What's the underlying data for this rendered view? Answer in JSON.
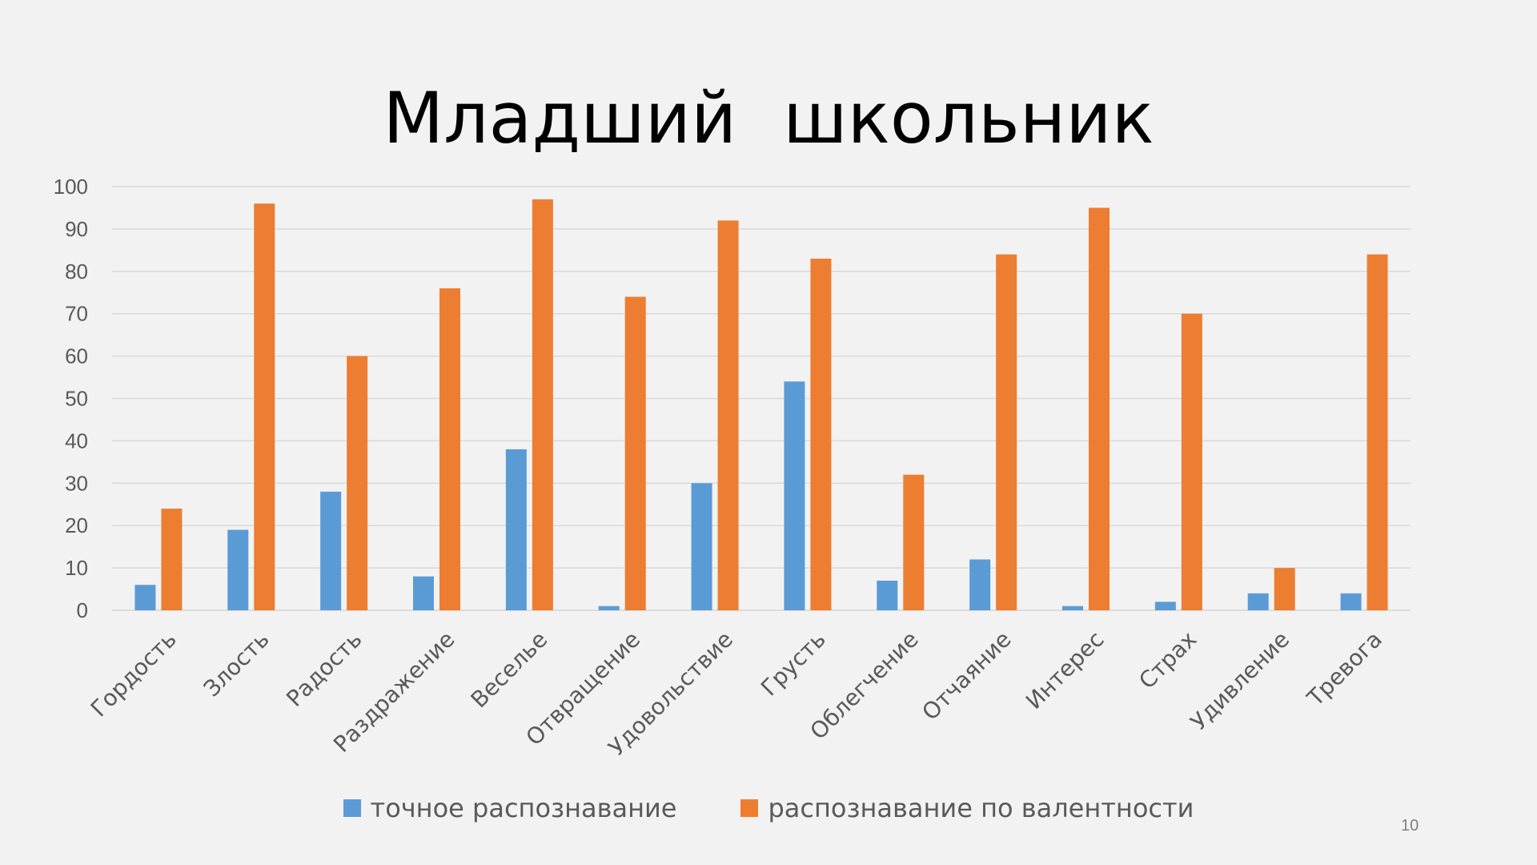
{
  "slide": {
    "title": "Младший  школьник",
    "page_number": "10"
  },
  "chart_data": {
    "type": "bar",
    "title": "",
    "xlabel": "",
    "ylabel": "",
    "ylim": [
      0,
      100
    ],
    "yticks": [
      "0",
      "10",
      "20",
      "30",
      "40",
      "50",
      "60",
      "70",
      "80",
      "90",
      "100"
    ],
    "grid": true,
    "legend_position": "bottom",
    "categories": [
      "Гордость",
      "Злость",
      "Радость",
      "Раздражение",
      "Веселье",
      "Отвращение",
      "Удовольствие",
      "Грусть",
      "Облегчение",
      "Отчаяние",
      "Интерес",
      "Страх",
      "Удивление",
      "Тревога"
    ],
    "series": [
      {
        "name": "точное распознавание",
        "color": "#5b9bd5",
        "values": [
          6,
          19,
          28,
          8,
          38,
          1,
          30,
          54,
          7,
          12,
          1,
          2,
          4,
          4
        ]
      },
      {
        "name": "распознавание по валентности",
        "color": "#ed7d31",
        "values": [
          24,
          96,
          60,
          76,
          97,
          74,
          92,
          83,
          32,
          84,
          95,
          70,
          10,
          84
        ]
      }
    ]
  }
}
